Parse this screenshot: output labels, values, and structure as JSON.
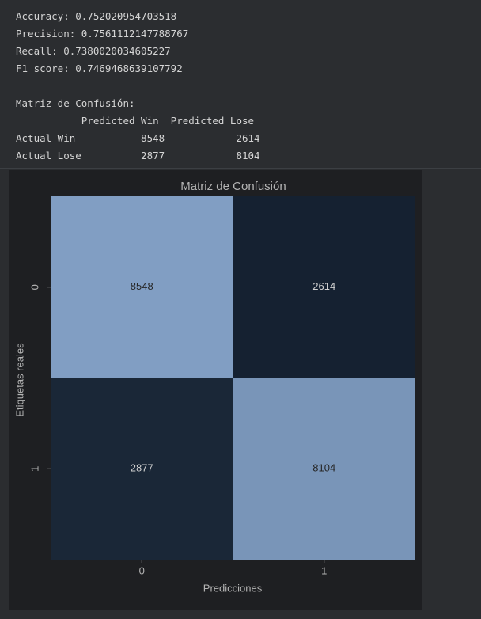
{
  "console_lines": [
    "Accuracy: 0.752020954703518",
    "Precision: 0.7561112147788767",
    "Recall: 0.7380020034605227",
    "F1 score: 0.7469468639107792",
    "Matriz de Confusión:",
    "           Predicted Win  Predicted Lose",
    "Actual Win           8548            2614",
    "Actual Lose          2877            8104"
  ],
  "chart_data": {
    "type": "heatmap",
    "title": "Matriz de Confusión",
    "x_label": "Predicciones",
    "y_label": "Etiquetas reales",
    "x_categories": [
      "0",
      "1"
    ],
    "y_categories": [
      "0",
      "1"
    ],
    "values": [
      [
        8548,
        2614
      ],
      [
        2877,
        8104
      ]
    ],
    "colormap": [
      "#152131",
      "#819ec3"
    ]
  }
}
